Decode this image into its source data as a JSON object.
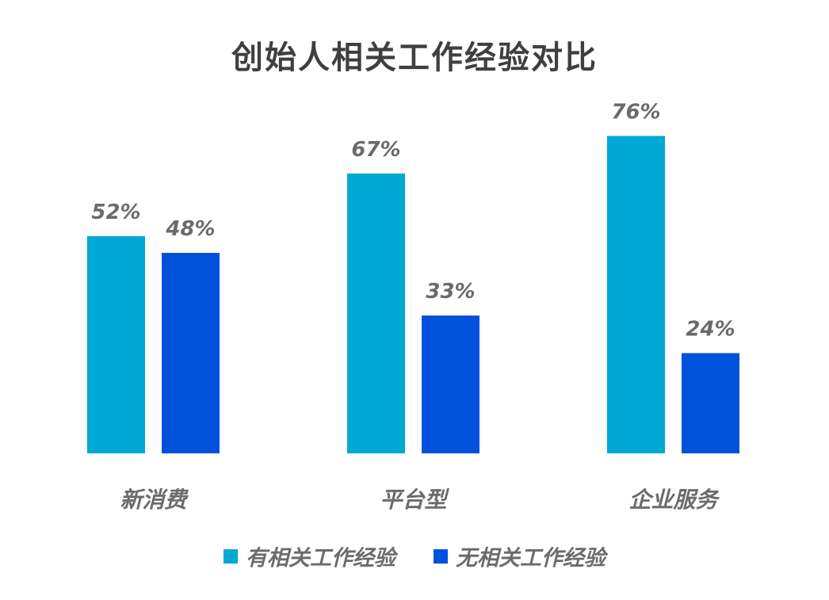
{
  "chart_data": {
    "type": "bar",
    "title": "创始人相关工作经验对比",
    "categories": [
      "新消费",
      "平台型",
      "企业服务"
    ],
    "series": [
      {
        "name": "有相关工作经验",
        "values": [
          52,
          67,
          76
        ],
        "labels": [
          "52%",
          "67%",
          "76%"
        ],
        "color": "#00a8d4"
      },
      {
        "name": "无相关工作经验",
        "values": [
          48,
          33,
          24
        ],
        "labels": [
          "48%",
          "33%",
          "24%"
        ],
        "color": "#0052dc"
      }
    ],
    "value_unit": "%",
    "ylim": [
      0,
      100
    ],
    "grid": false,
    "legend_placement": "bottom-center"
  }
}
